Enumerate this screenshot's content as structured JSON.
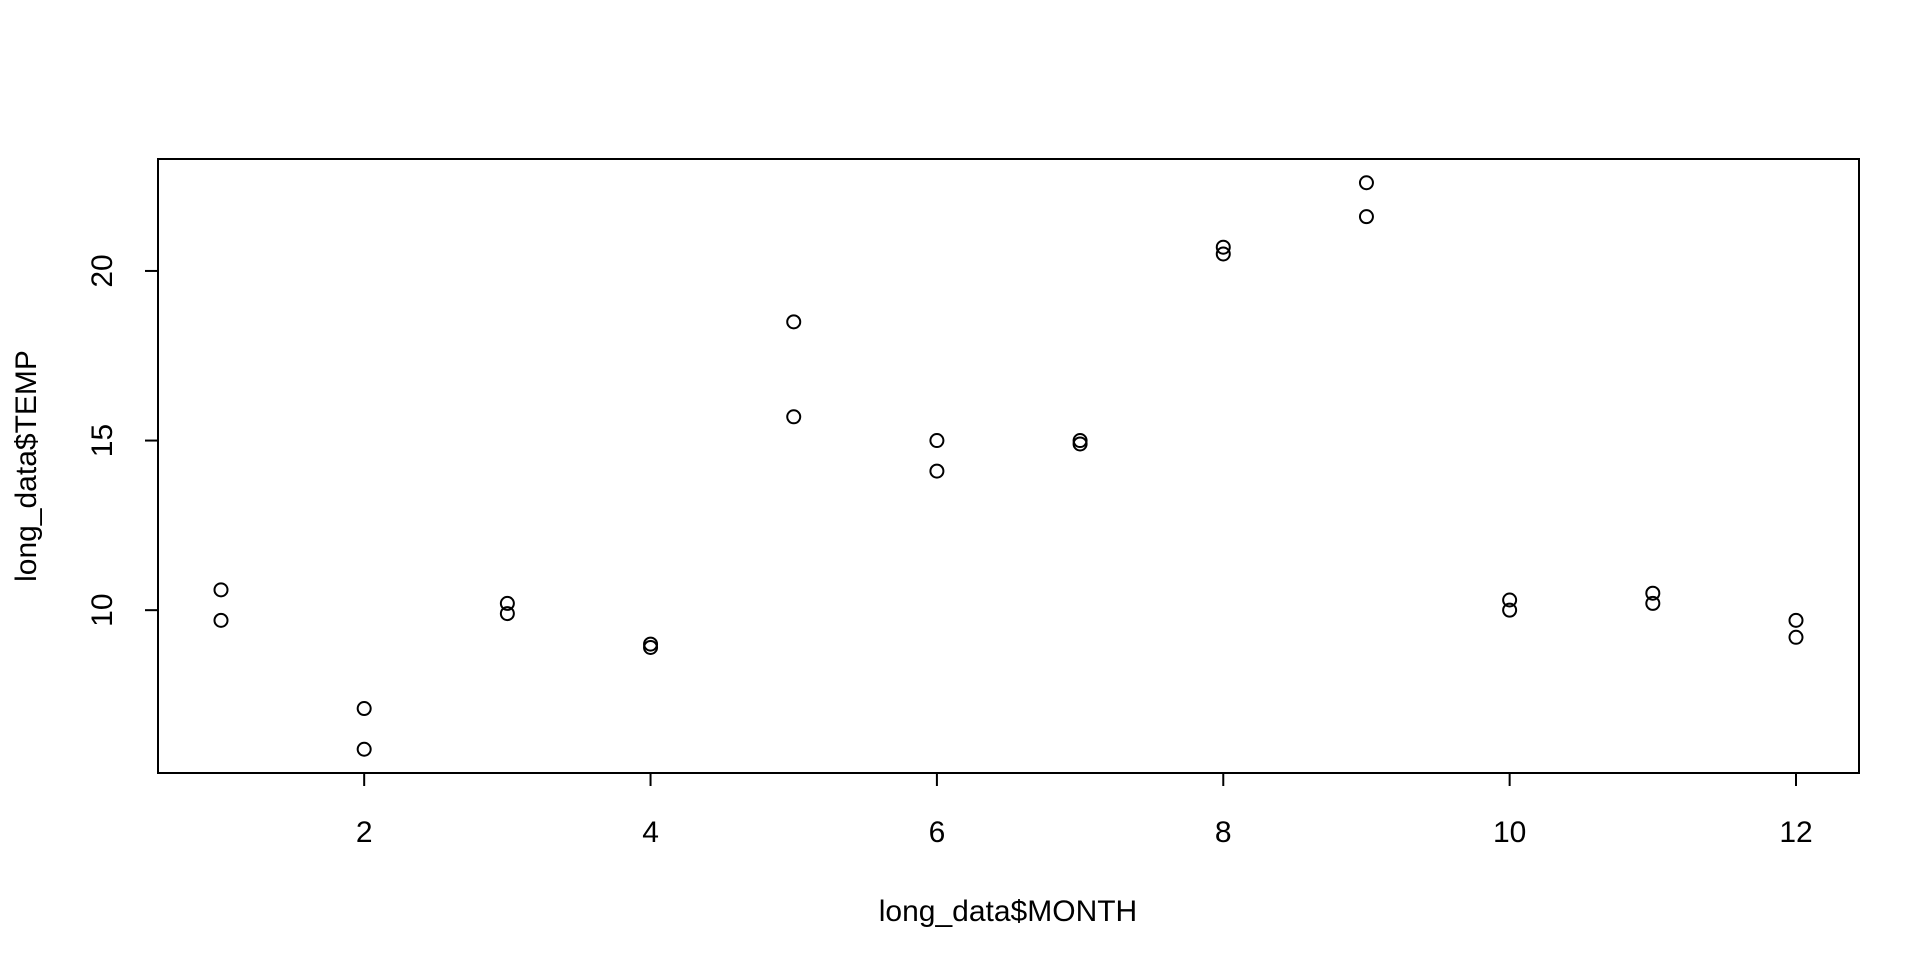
{
  "chart_data": {
    "type": "scatter",
    "title": "",
    "xlabel": "long_data$MONTH",
    "ylabel": "long_data$TEMP",
    "xlim": [
      0.56,
      12.44
    ],
    "ylim": [
      5.2,
      23.3
    ],
    "x_ticks": [
      2,
      4,
      6,
      8,
      10,
      12
    ],
    "y_ticks": [
      10,
      15,
      20
    ],
    "grid": false,
    "legend": "none",
    "marker": "open-circle",
    "colors": {
      "points": "#000000",
      "axes": "#000000",
      "background": "#ffffff"
    },
    "series": [
      {
        "x": [
          1,
          1,
          2,
          2,
          3,
          3,
          4,
          4,
          5,
          5,
          6,
          6,
          7,
          7,
          8,
          8,
          9,
          9,
          10,
          10,
          11,
          11,
          12,
          12
        ],
        "y": [
          10.6,
          9.7,
          7.1,
          5.9,
          10.2,
          9.9,
          9.0,
          8.9,
          18.5,
          15.7,
          15.0,
          14.1,
          15.0,
          14.9,
          20.7,
          20.5,
          22.6,
          21.6,
          10.3,
          10.0,
          10.5,
          10.2,
          9.7,
          9.2
        ]
      }
    ]
  }
}
